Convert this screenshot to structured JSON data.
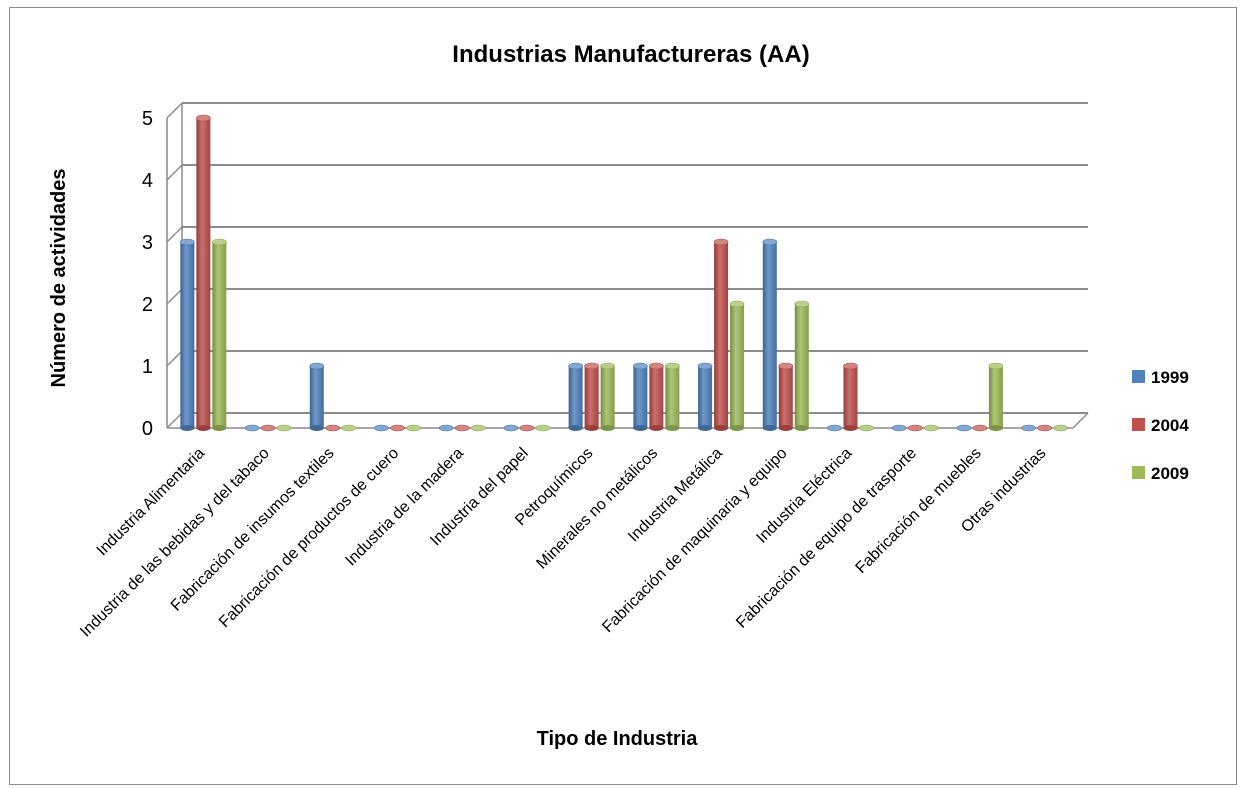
{
  "chart_data": {
    "type": "bar",
    "title": "Industrias Manufactureras (AA)",
    "xlabel": "Tipo de Industria",
    "ylabel": "Número de actividades",
    "ylim": [
      0,
      5
    ],
    "yticks": [
      "0",
      "1",
      "2",
      "3",
      "4",
      "5"
    ],
    "grid": true,
    "legend_position": "right",
    "categories": [
      "Industria Alimentaria",
      "Industria de las bebidas y del tabaco",
      "Fabricación de insumos textiles",
      "Fabricación de productos de cuero",
      "Industria de la madera",
      "Industria del papel",
      "Petroquímicos",
      "Minerales no metálicos",
      "Industria Metálica",
      "Fabricación de maquinaria y equipo",
      "Industria Eléctrica",
      "Fabricación de equipo de trasporte",
      "Fabricación de muebles",
      "Otras industrias"
    ],
    "series": [
      {
        "name": "1999",
        "color": "#4f81bd",
        "values": [
          3,
          0,
          1,
          0,
          0,
          0,
          1,
          1,
          1,
          3,
          0,
          0,
          0,
          0
        ]
      },
      {
        "name": "2004",
        "color": "#c0504d",
        "values": [
          5,
          0,
          0,
          0,
          0,
          0,
          1,
          1,
          3,
          1,
          1,
          0,
          0,
          0
        ]
      },
      {
        "name": "2009",
        "color": "#9bbb59",
        "values": [
          3,
          0,
          0,
          0,
          0,
          0,
          1,
          1,
          2,
          2,
          0,
          0,
          1,
          0
        ]
      }
    ]
  }
}
